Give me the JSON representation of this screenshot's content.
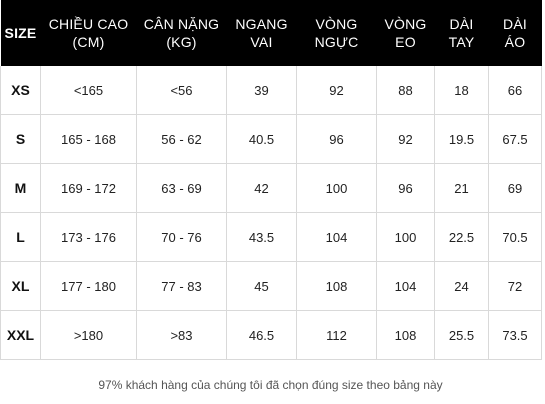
{
  "header": {
    "size": "SIZE",
    "height": [
      "CHIỀU CAO",
      "(CM)"
    ],
    "weight": [
      "CÂN NẶNG",
      "(KG)"
    ],
    "shoulder": [
      "NGANG",
      "VAI"
    ],
    "chest": [
      "VÒNG",
      "NGỰC"
    ],
    "waist": [
      "VÒNG",
      "EO"
    ],
    "sleeve": [
      "DÀI",
      "TAY"
    ],
    "length": [
      "DÀI",
      "ÁO"
    ]
  },
  "rows": [
    {
      "size": "XS",
      "height": "<165",
      "weight": "<56",
      "shoulder": "39",
      "chest": "92",
      "waist": "88",
      "sleeve": "18",
      "length": "66"
    },
    {
      "size": "S",
      "height": "165 - 168",
      "weight": "56 - 62",
      "shoulder": "40.5",
      "chest": "96",
      "waist": "92",
      "sleeve": "19.5",
      "length": "67.5"
    },
    {
      "size": "M",
      "height": "169 - 172",
      "weight": "63 - 69",
      "shoulder": "42",
      "chest": "100",
      "waist": "96",
      "sleeve": "21",
      "length": "69"
    },
    {
      "size": "L",
      "height": "173 - 176",
      "weight": "70 - 76",
      "shoulder": "43.5",
      "chest": "104",
      "waist": "100",
      "sleeve": "22.5",
      "length": "70.5"
    },
    {
      "size": "XL",
      "height": "177 - 180",
      "weight": "77 - 83",
      "shoulder": "45",
      "chest": "108",
      "waist": "104",
      "sleeve": "24",
      "length": "72"
    },
    {
      "size": "XXL",
      "height": ">180",
      "weight": ">83",
      "shoulder": "46.5",
      "chest": "112",
      "waist": "108",
      "sleeve": "25.5",
      "length": "73.5"
    }
  ],
  "footer": "97% khách hàng của chúng tôi đã chọn đúng size theo bảng này"
}
